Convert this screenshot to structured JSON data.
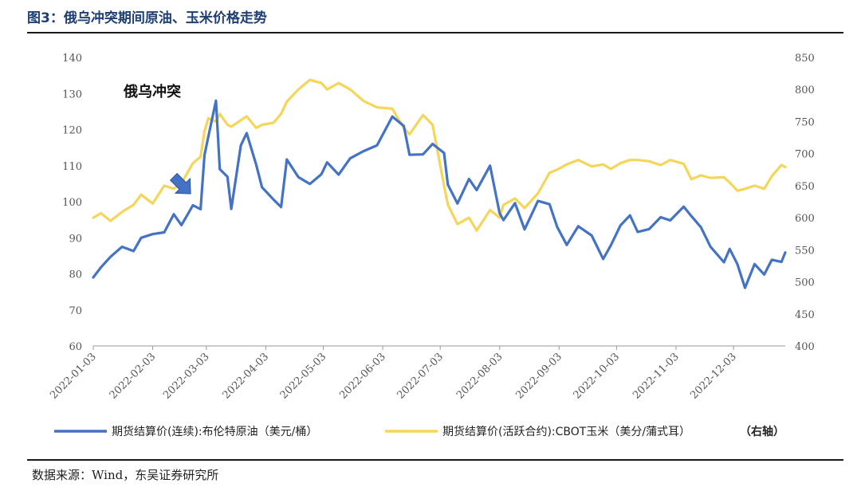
{
  "page": {
    "title": "图3：俄乌冲突期间原油、玉米价格走势",
    "source": "数据来源：Wind，东吴证券研究所"
  },
  "colors": {
    "oil": "#4472c4",
    "corn": "#f5d55a",
    "axis": "#999999"
  },
  "chart_data": {
    "type": "line",
    "title": "俄乌冲突期间原油、玉米价格走势",
    "annotation": "俄乌冲突",
    "annotation_arrow_icon": "down-right-arrow-icon",
    "annotation_date": "2022-02-24",
    "x_ticks": [
      "2022-01-03",
      "2022-02-03",
      "2022-03-03",
      "2022-04-03",
      "2022-05-03",
      "2022-06-03",
      "2022-07-03",
      "2022-08-03",
      "2022-09-03",
      "2022-10-03",
      "2022-11-03",
      "2022-12-03"
    ],
    "y_left": {
      "min": 60,
      "max": 140,
      "ticks": [
        "60",
        "70",
        "80",
        "90",
        "100",
        "110",
        "120",
        "130",
        "140"
      ]
    },
    "y_right": {
      "min": 400,
      "max": 850,
      "ticks": [
        "400",
        "450",
        "500",
        "550",
        "600",
        "650",
        "700",
        "750",
        "800",
        "850"
      ]
    },
    "series": [
      {
        "name": "期货结算价(连续):布伦特原油（美元/桶）",
        "axis": "left",
        "points": [
          [
            "2022-01-03",
            79
          ],
          [
            "2022-01-07",
            81.8
          ],
          [
            "2022-01-12",
            84.7
          ],
          [
            "2022-01-18",
            87.5
          ],
          [
            "2022-01-24",
            86.3
          ],
          [
            "2022-01-28",
            90
          ],
          [
            "2022-02-03",
            91
          ],
          [
            "2022-02-09",
            91.5
          ],
          [
            "2022-02-14",
            96.5
          ],
          [
            "2022-02-18",
            93.5
          ],
          [
            "2022-02-24",
            99
          ],
          [
            "2022-02-28",
            97.9
          ],
          [
            "2022-03-02",
            112.9
          ],
          [
            "2022-03-04",
            118
          ],
          [
            "2022-03-08",
            128
          ],
          [
            "2022-03-10",
            109
          ],
          [
            "2022-03-14",
            106.9
          ],
          [
            "2022-03-16",
            98
          ],
          [
            "2022-03-21",
            115.6
          ],
          [
            "2022-03-24",
            119
          ],
          [
            "2022-03-29",
            110.2
          ],
          [
            "2022-04-01",
            104
          ],
          [
            "2022-04-07",
            100.6
          ],
          [
            "2022-04-11",
            98.5
          ],
          [
            "2022-04-14",
            111.7
          ],
          [
            "2022-04-20",
            106.8
          ],
          [
            "2022-04-26",
            104.9
          ],
          [
            "2022-05-02",
            107.6
          ],
          [
            "2022-05-05",
            110.9
          ],
          [
            "2022-05-11",
            107.5
          ],
          [
            "2022-05-17",
            112
          ],
          [
            "2022-05-24",
            114
          ],
          [
            "2022-05-31",
            115.6
          ],
          [
            "2022-06-08",
            123.6
          ],
          [
            "2022-06-14",
            121
          ],
          [
            "2022-06-17",
            113
          ],
          [
            "2022-06-24",
            113.1
          ],
          [
            "2022-06-29",
            116
          ],
          [
            "2022-07-05",
            113.5
          ],
          [
            "2022-07-07",
            104.7
          ],
          [
            "2022-07-12",
            99.5
          ],
          [
            "2022-07-18",
            106.3
          ],
          [
            "2022-07-22",
            103.2
          ],
          [
            "2022-07-29",
            110
          ],
          [
            "2022-08-03",
            96.8
          ],
          [
            "2022-08-05",
            94.9
          ],
          [
            "2022-08-11",
            99.6
          ],
          [
            "2022-08-16",
            92.3
          ],
          [
            "2022-08-23",
            100.2
          ],
          [
            "2022-08-29",
            99.3
          ],
          [
            "2022-09-02",
            93
          ],
          [
            "2022-09-07",
            88
          ],
          [
            "2022-09-13",
            93.2
          ],
          [
            "2022-09-20",
            90.6
          ],
          [
            "2022-09-26",
            84.1
          ],
          [
            "2022-09-30",
            87.9
          ],
          [
            "2022-10-05",
            93.4
          ],
          [
            "2022-10-10",
            96.2
          ],
          [
            "2022-10-14",
            91.6
          ],
          [
            "2022-10-20",
            92.4
          ],
          [
            "2022-10-26",
            95.7
          ],
          [
            "2022-10-31",
            94.8
          ],
          [
            "2022-11-07",
            98.6
          ],
          [
            "2022-11-11",
            96
          ],
          [
            "2022-11-16",
            92.9
          ],
          [
            "2022-11-21",
            87.5
          ],
          [
            "2022-11-28",
            83.2
          ],
          [
            "2022-12-01",
            86.9
          ],
          [
            "2022-12-05",
            82.7
          ],
          [
            "2022-12-09",
            76.1
          ],
          [
            "2022-12-14",
            82.7
          ],
          [
            "2022-12-19",
            79.8
          ],
          [
            "2022-12-23",
            83.9
          ],
          [
            "2022-12-28",
            83.3
          ],
          [
            "2022-12-30",
            85.9
          ]
        ]
      },
      {
        "name": "期货结算价(活跃合约):CBOT玉米（美分/蒲式耳）",
        "axis": "right",
        "points": [
          [
            "2022-01-03",
            600
          ],
          [
            "2022-01-07",
            607
          ],
          [
            "2022-01-12",
            595
          ],
          [
            "2022-01-18",
            609
          ],
          [
            "2022-01-24",
            620
          ],
          [
            "2022-01-28",
            636
          ],
          [
            "2022-02-03",
            622
          ],
          [
            "2022-02-09",
            650
          ],
          [
            "2022-02-14",
            645
          ],
          [
            "2022-02-18",
            654
          ],
          [
            "2022-02-24",
            685
          ],
          [
            "2022-02-28",
            695
          ],
          [
            "2022-03-02",
            735
          ],
          [
            "2022-03-04",
            755
          ],
          [
            "2022-03-08",
            750
          ],
          [
            "2022-03-10",
            762
          ],
          [
            "2022-03-14",
            745
          ],
          [
            "2022-03-16",
            742
          ],
          [
            "2022-03-21",
            752
          ],
          [
            "2022-03-24",
            758
          ],
          [
            "2022-03-29",
            740
          ],
          [
            "2022-04-01",
            745
          ],
          [
            "2022-04-07",
            748
          ],
          [
            "2022-04-11",
            762
          ],
          [
            "2022-04-14",
            781
          ],
          [
            "2022-04-20",
            800
          ],
          [
            "2022-04-26",
            815
          ],
          [
            "2022-05-02",
            810
          ],
          [
            "2022-05-05",
            800
          ],
          [
            "2022-05-11",
            810
          ],
          [
            "2022-05-17",
            800
          ],
          [
            "2022-05-24",
            782
          ],
          [
            "2022-05-31",
            772
          ],
          [
            "2022-06-08",
            770
          ],
          [
            "2022-06-14",
            740
          ],
          [
            "2022-06-17",
            730
          ],
          [
            "2022-06-24",
            760
          ],
          [
            "2022-06-29",
            745
          ],
          [
            "2022-07-05",
            650
          ],
          [
            "2022-07-07",
            620
          ],
          [
            "2022-07-12",
            590
          ],
          [
            "2022-07-18",
            600
          ],
          [
            "2022-07-22",
            580
          ],
          [
            "2022-07-29",
            612
          ],
          [
            "2022-08-03",
            600
          ],
          [
            "2022-08-05",
            620
          ],
          [
            "2022-08-11",
            630
          ],
          [
            "2022-08-16",
            615
          ],
          [
            "2022-08-23",
            638
          ],
          [
            "2022-08-29",
            670
          ],
          [
            "2022-09-02",
            675
          ],
          [
            "2022-09-07",
            683
          ],
          [
            "2022-09-13",
            690
          ],
          [
            "2022-09-20",
            680
          ],
          [
            "2022-09-26",
            683
          ],
          [
            "2022-09-30",
            676
          ],
          [
            "2022-10-05",
            685
          ],
          [
            "2022-10-10",
            690
          ],
          [
            "2022-10-14",
            690
          ],
          [
            "2022-10-20",
            688
          ],
          [
            "2022-10-26",
            682
          ],
          [
            "2022-10-31",
            690
          ],
          [
            "2022-11-07",
            684
          ],
          [
            "2022-11-11",
            660
          ],
          [
            "2022-11-16",
            666
          ],
          [
            "2022-11-21",
            662
          ],
          [
            "2022-11-28",
            663
          ],
          [
            "2022-12-01",
            655
          ],
          [
            "2022-12-05",
            642
          ],
          [
            "2022-12-09",
            645
          ],
          [
            "2022-12-14",
            650
          ],
          [
            "2022-12-19",
            645
          ],
          [
            "2022-12-23",
            665
          ],
          [
            "2022-12-28",
            682
          ],
          [
            "2022-12-30",
            679
          ]
        ]
      }
    ],
    "legend": [
      {
        "label": "期货结算价(连续):布伦特原油（美元/桶）"
      },
      {
        "label": "期货结算价(活跃合约):CBOT玉米（美分/蒲式耳）",
        "suffix": "（右轴）"
      }
    ]
  }
}
